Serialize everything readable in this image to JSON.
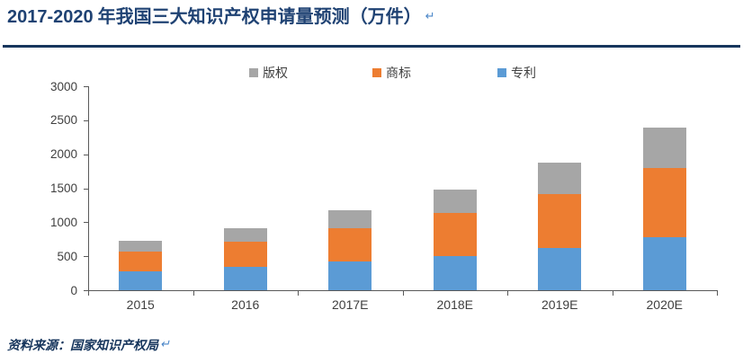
{
  "page": {
    "title_prefix": "2017-2020",
    "title_main": " 年我国三大知识产权申请量预测（万件）",
    "return_mark": "↵",
    "source_label": "资料来源：国家知识产权局"
  },
  "colors": {
    "title": "#1F4273",
    "rule": "#17365D",
    "source_text": "#17365D",
    "return_mark": "#4A86C8",
    "axis_text": "#3F3F3F",
    "axis_line": "#595959"
  },
  "chart_data": {
    "type": "bar",
    "stacked": true,
    "title": "2017-2020 年我国三大知识产权申请量预测（万件）",
    "unit": "万件",
    "categories": [
      "2015",
      "2016",
      "2017E",
      "2018E",
      "2019E",
      "2020E"
    ],
    "series": [
      {
        "name": "版权",
        "key": "copyright",
        "color": "#A6A6A6",
        "pattern": "dots",
        "values": [
          165,
          201,
          270,
          350,
          460,
          595
        ]
      },
      {
        "name": "商标",
        "key": "trademark",
        "color": "#ED7D31",
        "values": [
          288,
          369,
          490,
          625,
          800,
          1020
        ]
      },
      {
        "name": "专利",
        "key": "patent",
        "color": "#5B9BD5",
        "values": [
          280,
          347,
          420,
          505,
          620,
          775
        ]
      }
    ],
    "totals": [
      733,
      917,
      1180,
      1480,
      1880,
      2390
    ],
    "stack_bottom_to_top": [
      "专利",
      "商标",
      "版权"
    ],
    "ylim": [
      0,
      3000
    ],
    "ytick_step": 500,
    "yticks": [
      0,
      500,
      1000,
      1500,
      2000,
      2500,
      3000
    ],
    "legend_position": "top",
    "grid": false,
    "source": "资料来源：国家知识产权局"
  }
}
